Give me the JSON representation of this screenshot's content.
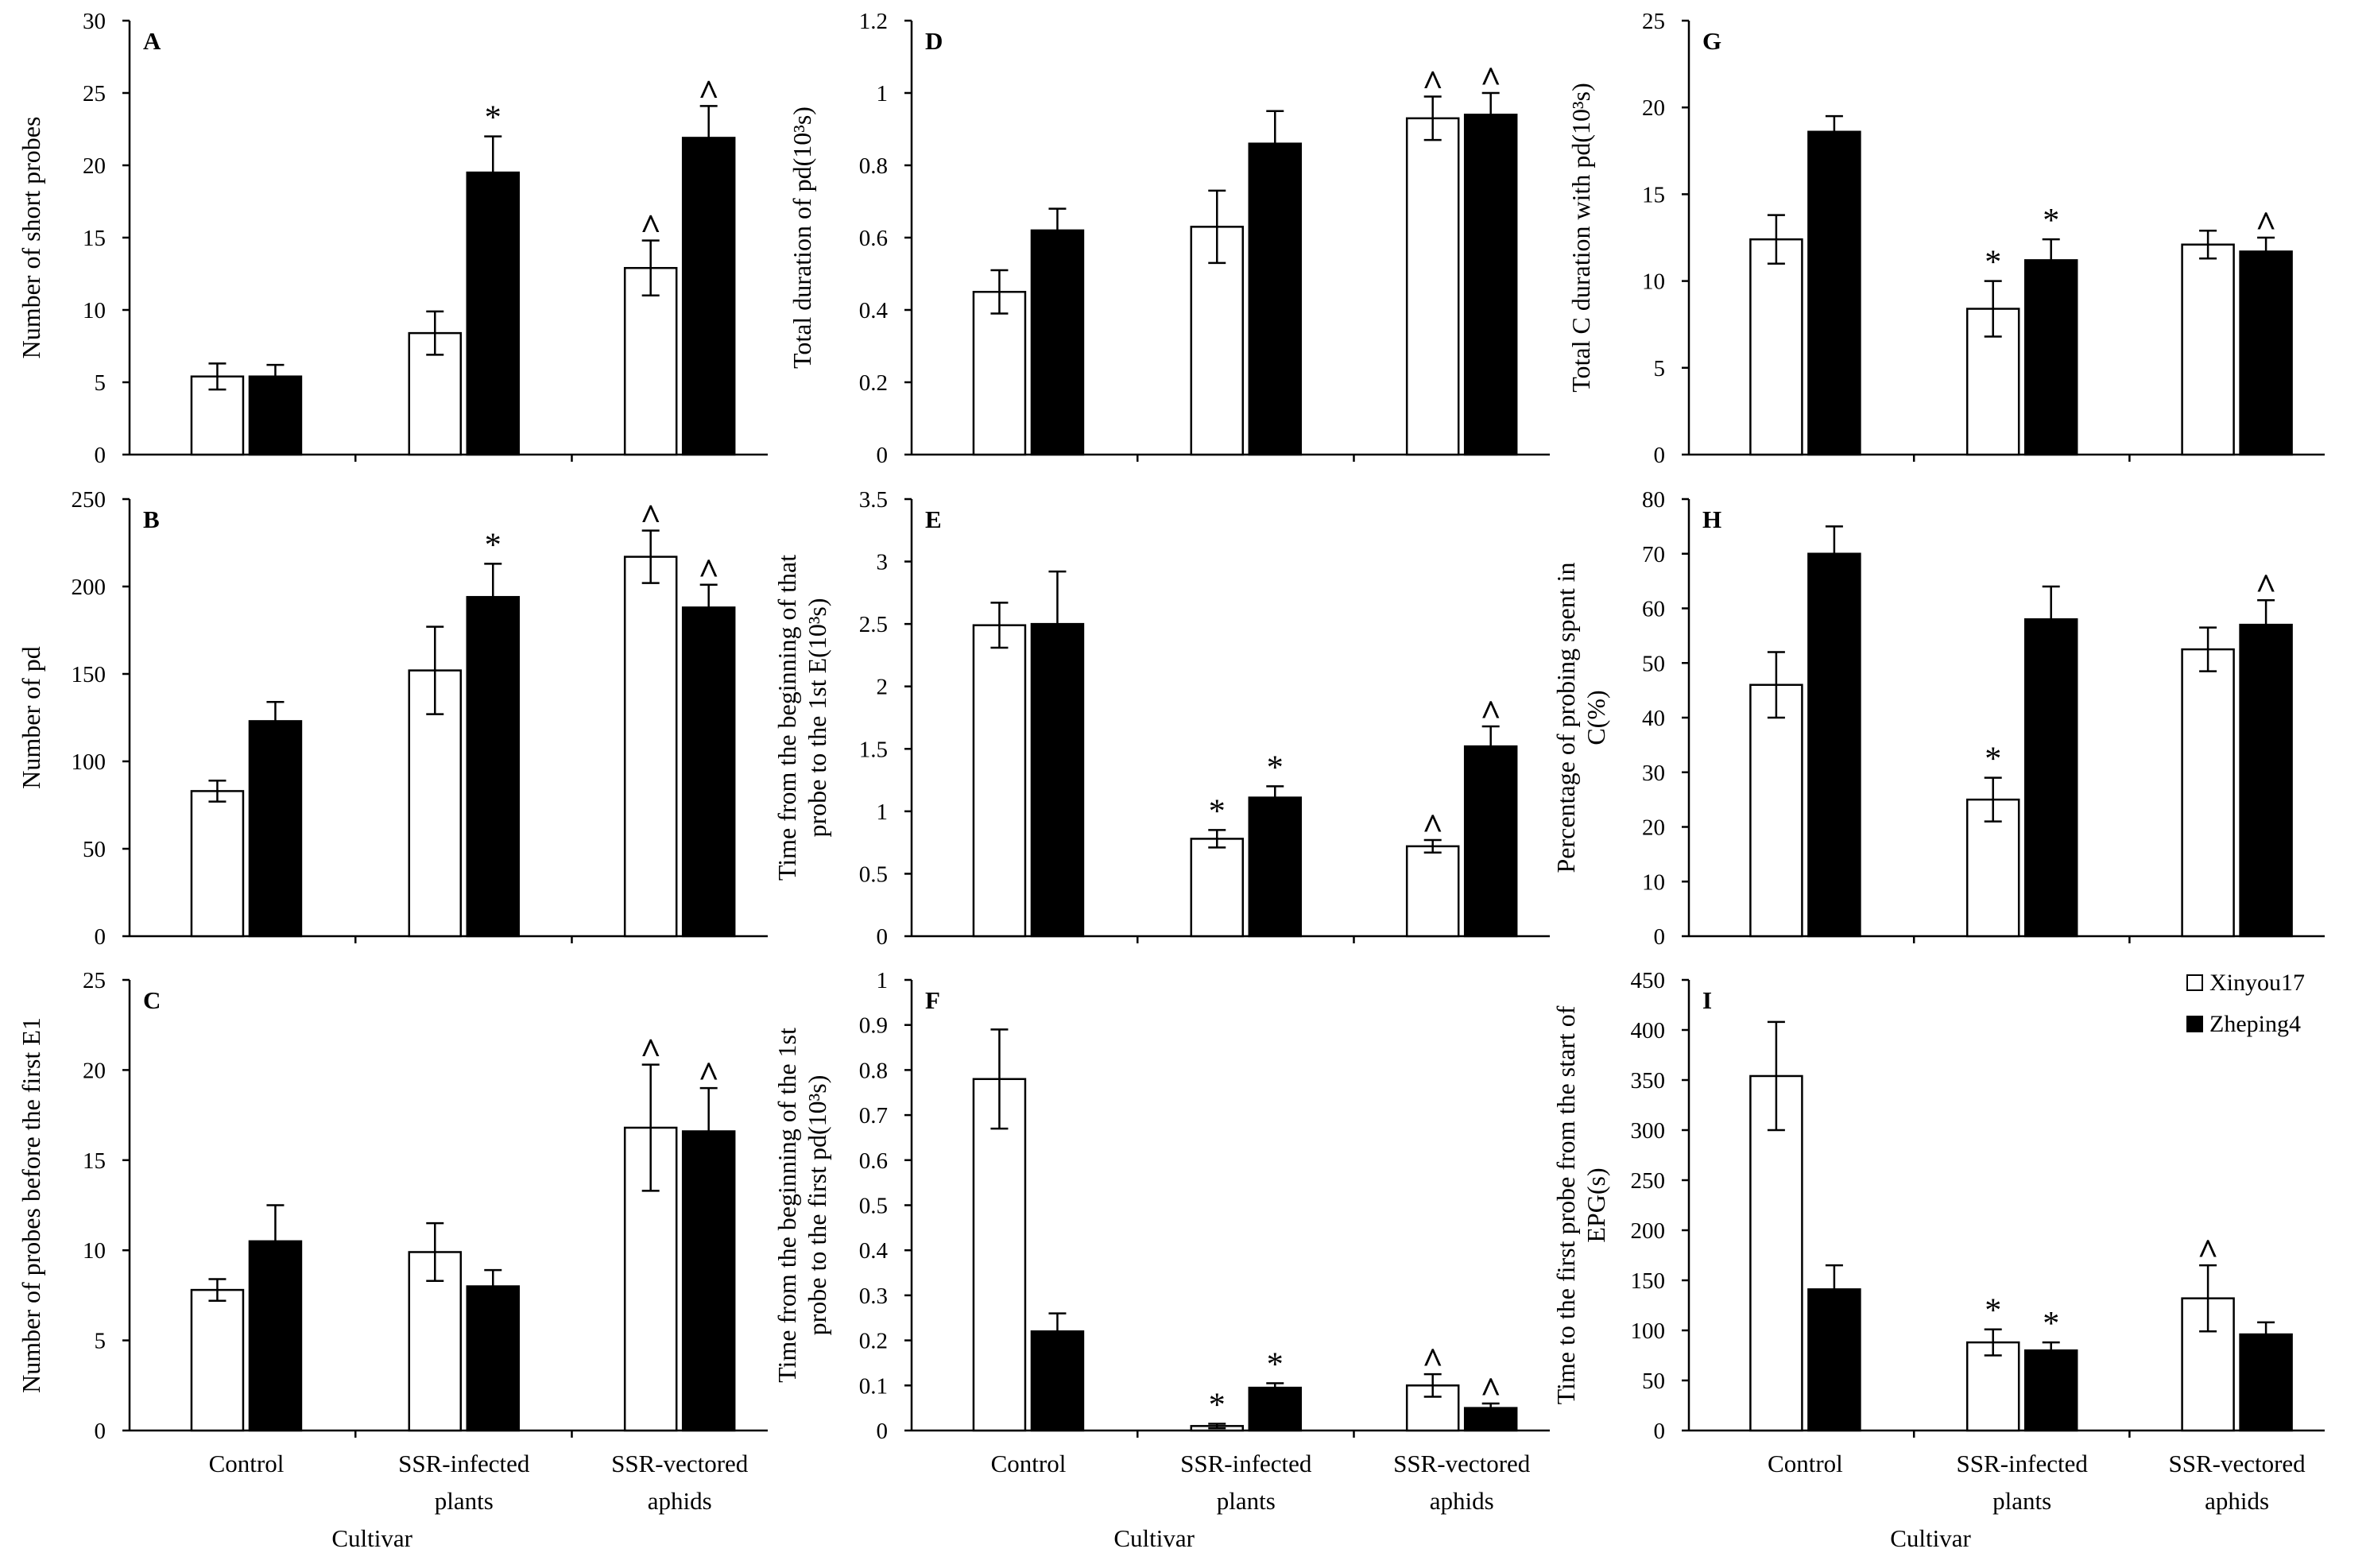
{
  "legend": {
    "entries": [
      {
        "name": "Xinyou17",
        "fill": "#ffffff"
      },
      {
        "name": "Zheping4",
        "fill": "#000000"
      }
    ]
  },
  "colors": {
    "xinyou17": "#ffffff",
    "zheping4": "#000000",
    "stroke": "#000000"
  },
  "chart_data": [
    {
      "type": "bar",
      "panel": "A",
      "ylabel": [
        "Number of short probes"
      ],
      "ylim": [
        0,
        30
      ],
      "yticks": [
        0,
        5,
        10,
        15,
        20,
        25,
        30
      ],
      "categories": [
        "Control",
        "SSR-infected plants",
        "SSR-vectored aphids"
      ],
      "series": [
        {
          "name": "Xinyou17",
          "values": [
            5.4,
            8.4,
            12.9
          ],
          "errors": [
            0.9,
            1.5,
            1.9
          ],
          "marks": [
            "",
            "",
            "^"
          ]
        },
        {
          "name": "Zheping4",
          "values": [
            5.4,
            19.5,
            21.9
          ],
          "errors": [
            0.8,
            2.5,
            2.2
          ],
          "marks": [
            "",
            "*",
            "^"
          ]
        }
      ]
    },
    {
      "type": "bar",
      "panel": "B",
      "ylabel": [
        "Number of pd"
      ],
      "ylim": [
        0,
        250
      ],
      "yticks": [
        0,
        50,
        100,
        150,
        200,
        250
      ],
      "categories": [
        "Control",
        "SSR-infected plants",
        "SSR-vectored aphids"
      ],
      "series": [
        {
          "name": "Xinyou17",
          "values": [
            83,
            152,
            217
          ],
          "errors": [
            6,
            25,
            15
          ],
          "marks": [
            "",
            "",
            "^"
          ]
        },
        {
          "name": "Zheping4",
          "values": [
            123,
            194,
            188
          ],
          "errors": [
            11,
            19,
            13
          ],
          "marks": [
            "",
            "*",
            "^"
          ]
        }
      ]
    },
    {
      "type": "bar",
      "panel": "C",
      "ylabel": [
        "Number of probes before the first E1"
      ],
      "ylim": [
        0,
        25
      ],
      "yticks": [
        0,
        5,
        10,
        15,
        20,
        25
      ],
      "categories": [
        "Control",
        "SSR-infected plants",
        "SSR-vectored aphids"
      ],
      "xlabel": "Cultivar",
      "series": [
        {
          "name": "Xinyou17",
          "values": [
            7.8,
            9.9,
            16.8
          ],
          "errors": [
            0.6,
            1.6,
            3.5
          ],
          "marks": [
            "",
            "",
            "^"
          ]
        },
        {
          "name": "Zheping4",
          "values": [
            10.5,
            8.0,
            16.6
          ],
          "errors": [
            2.0,
            0.9,
            2.4
          ],
          "marks": [
            "",
            "",
            "^"
          ]
        }
      ]
    },
    {
      "type": "bar",
      "panel": "D",
      "ylabel": [
        "Total duration of pd(10³s)"
      ],
      "ylim": [
        0,
        1.2
      ],
      "yticks": [
        0,
        0.2,
        0.4,
        0.6,
        0.8,
        1,
        1.2
      ],
      "categories": [
        "Control",
        "SSR-infected plants",
        "SSR-vectored aphids"
      ],
      "series": [
        {
          "name": "Xinyou17",
          "values": [
            0.45,
            0.63,
            0.93
          ],
          "errors": [
            0.06,
            0.1,
            0.06
          ],
          "marks": [
            "",
            "",
            "^"
          ]
        },
        {
          "name": "Zheping4",
          "values": [
            0.62,
            0.86,
            0.94
          ],
          "errors": [
            0.06,
            0.09,
            0.06
          ],
          "marks": [
            "",
            "",
            "^"
          ]
        }
      ]
    },
    {
      "type": "bar",
      "panel": "E",
      "ylabel": [
        "Time from the beginning of that",
        "probe to the 1st E(10³s)"
      ],
      "ylim": [
        0,
        3.5
      ],
      "yticks": [
        0,
        0.5,
        1,
        1.5,
        2,
        2.5,
        3,
        3.5
      ],
      "categories": [
        "Control",
        "SSR-infected plants",
        "SSR-vectored aphids"
      ],
      "series": [
        {
          "name": "Xinyou17",
          "values": [
            2.49,
            0.78,
            0.72
          ],
          "errors": [
            0.18,
            0.07,
            0.05
          ],
          "marks": [
            "",
            "*",
            "^"
          ]
        },
        {
          "name": "Zheping4",
          "values": [
            2.5,
            1.11,
            1.52
          ],
          "errors": [
            0.42,
            0.09,
            0.16
          ],
          "marks": [
            "",
            "*",
            "^"
          ]
        }
      ]
    },
    {
      "type": "bar",
      "panel": "F",
      "ylabel": [
        "Time from the beginning of the 1st",
        "probe to the first pd(10³s)"
      ],
      "ylim": [
        0,
        1
      ],
      "yticks": [
        0,
        0.1,
        0.2,
        0.3,
        0.4,
        0.5,
        0.6,
        0.7,
        0.8,
        0.9,
        1
      ],
      "categories": [
        "Control",
        "SSR-infected plants",
        "SSR-vectored aphids"
      ],
      "xlabel": "Cultivar",
      "series": [
        {
          "name": "Xinyou17",
          "values": [
            0.78,
            0.01,
            0.1
          ],
          "errors": [
            0.11,
            0.005,
            0.025
          ],
          "marks": [
            "",
            "*",
            "^"
          ]
        },
        {
          "name": "Zheping4",
          "values": [
            0.22,
            0.095,
            0.05
          ],
          "errors": [
            0.04,
            0.01,
            0.01
          ],
          "marks": [
            "",
            "*",
            "^"
          ]
        }
      ]
    },
    {
      "type": "bar",
      "panel": "G",
      "ylabel": [
        "Total C duration with pd(10³s)"
      ],
      "ylim": [
        0,
        25
      ],
      "yticks": [
        0,
        5,
        10,
        15,
        20,
        25
      ],
      "categories": [
        "Control",
        "SSR-infected plants",
        "SSR-vectored aphids"
      ],
      "series": [
        {
          "name": "Xinyou17",
          "values": [
            12.4,
            8.4,
            12.1
          ],
          "errors": [
            1.4,
            1.6,
            0.8
          ],
          "marks": [
            "",
            "*",
            ""
          ]
        },
        {
          "name": "Zheping4",
          "values": [
            18.6,
            11.2,
            11.7
          ],
          "errors": [
            0.9,
            1.2,
            0.8
          ],
          "marks": [
            "",
            "*",
            "^"
          ]
        }
      ]
    },
    {
      "type": "bar",
      "panel": "H",
      "ylabel": [
        "Percentage of probing spent in",
        "C(%)"
      ],
      "ylim": [
        0,
        80
      ],
      "yticks": [
        0,
        10,
        20,
        30,
        40,
        50,
        60,
        70,
        80
      ],
      "categories": [
        "Control",
        "SSR-infected plants",
        "SSR-vectored aphids"
      ],
      "series": [
        {
          "name": "Xinyou17",
          "values": [
            46,
            25,
            52.5
          ],
          "errors": [
            6,
            4,
            4
          ],
          "marks": [
            "",
            "*",
            ""
          ]
        },
        {
          "name": "Zheping4",
          "values": [
            70,
            58,
            57
          ],
          "errors": [
            5,
            6,
            4.5
          ],
          "marks": [
            "",
            "",
            "^"
          ]
        }
      ]
    },
    {
      "type": "bar",
      "panel": "I",
      "ylabel": [
        "Time to the first probe from the start of",
        "EPG(s)"
      ],
      "ylim": [
        0,
        450
      ],
      "yticks": [
        0,
        50,
        100,
        150,
        200,
        250,
        300,
        350,
        400,
        450
      ],
      "categories": [
        "Control",
        "SSR-infected plants",
        "SSR-vectored aphids"
      ],
      "xlabel": "Cultivar",
      "series": [
        {
          "name": "Xinyou17",
          "values": [
            354,
            88,
            132
          ],
          "errors": [
            54,
            13,
            33
          ],
          "marks": [
            "",
            "*",
            "^"
          ]
        },
        {
          "name": "Zheping4",
          "values": [
            141,
            80,
            96
          ],
          "errors": [
            24,
            8,
            12
          ],
          "marks": [
            "",
            "*",
            ""
          ]
        }
      ]
    }
  ]
}
